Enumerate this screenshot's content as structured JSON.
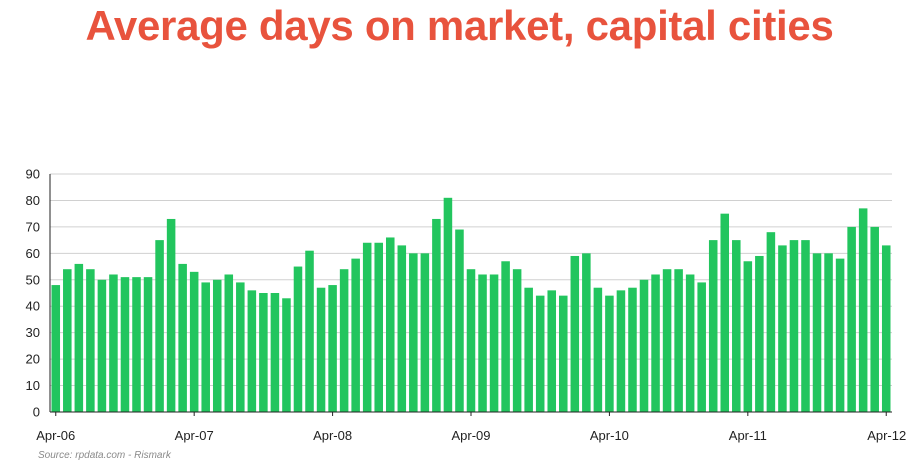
{
  "title": "Average days on market, capital cities",
  "source": "Source:  rpdata.com - Rismark",
  "colors": {
    "title": "#e8533d",
    "bar": "#22c55e",
    "grid": "#d0d0d0",
    "axis": "#222222"
  },
  "chart_data": {
    "type": "bar",
    "title": "Average days on market, capital cities",
    "xlabel": "",
    "ylabel": "",
    "ylim": [
      0,
      90
    ],
    "yticks": [
      0,
      10,
      20,
      30,
      40,
      50,
      60,
      70,
      80,
      90
    ],
    "grid": true,
    "x_tick_labels": [
      {
        "label": "Apr-06",
        "index": 0
      },
      {
        "label": "Apr-07",
        "index": 12
      },
      {
        "label": "Apr-08",
        "index": 24
      },
      {
        "label": "Apr-09",
        "index": 36
      },
      {
        "label": "Apr-10",
        "index": 48
      },
      {
        "label": "Apr-11",
        "index": 60
      },
      {
        "label": "Apr-12",
        "index": 72
      }
    ],
    "categories": [
      "Apr-06",
      "May-06",
      "Jun-06",
      "Jul-06",
      "Aug-06",
      "Sep-06",
      "Oct-06",
      "Nov-06",
      "Dec-06",
      "Jan-07",
      "Feb-07",
      "Mar-07",
      "Apr-07",
      "May-07",
      "Jun-07",
      "Jul-07",
      "Aug-07",
      "Sep-07",
      "Oct-07",
      "Nov-07",
      "Dec-07",
      "Jan-08",
      "Feb-08",
      "Mar-08",
      "Apr-08",
      "May-08",
      "Jun-08",
      "Jul-08",
      "Aug-08",
      "Sep-08",
      "Oct-08",
      "Nov-08",
      "Dec-08",
      "Jan-09",
      "Feb-09",
      "Mar-09",
      "Apr-09",
      "May-09",
      "Jun-09",
      "Jul-09",
      "Aug-09",
      "Sep-09",
      "Oct-09",
      "Nov-09",
      "Dec-09",
      "Jan-10",
      "Feb-10",
      "Mar-10",
      "Apr-10",
      "May-10",
      "Jun-10",
      "Jul-10",
      "Aug-10",
      "Sep-10",
      "Oct-10",
      "Nov-10",
      "Dec-10",
      "Jan-11",
      "Feb-11",
      "Mar-11",
      "Apr-11",
      "May-11",
      "Jun-11",
      "Jul-11",
      "Aug-11",
      "Sep-11",
      "Oct-11",
      "Nov-11",
      "Dec-11",
      "Jan-12",
      "Feb-12",
      "Mar-12",
      "Apr-12"
    ],
    "values": [
      48,
      54,
      56,
      54,
      50,
      52,
      51,
      51,
      51,
      65,
      73,
      56,
      53,
      49,
      50,
      52,
      49,
      46,
      45,
      45,
      43,
      55,
      61,
      47,
      48,
      54,
      58,
      64,
      64,
      66,
      63,
      60,
      60,
      73,
      81,
      69,
      54,
      52,
      52,
      57,
      54,
      47,
      44,
      46,
      44,
      59,
      60,
      47,
      44,
      46,
      47,
      50,
      52,
      54,
      54,
      52,
      49,
      65,
      75,
      65,
      57,
      59,
      68,
      63,
      65,
      65,
      60,
      60,
      58,
      70,
      77,
      70,
      63
    ]
  }
}
